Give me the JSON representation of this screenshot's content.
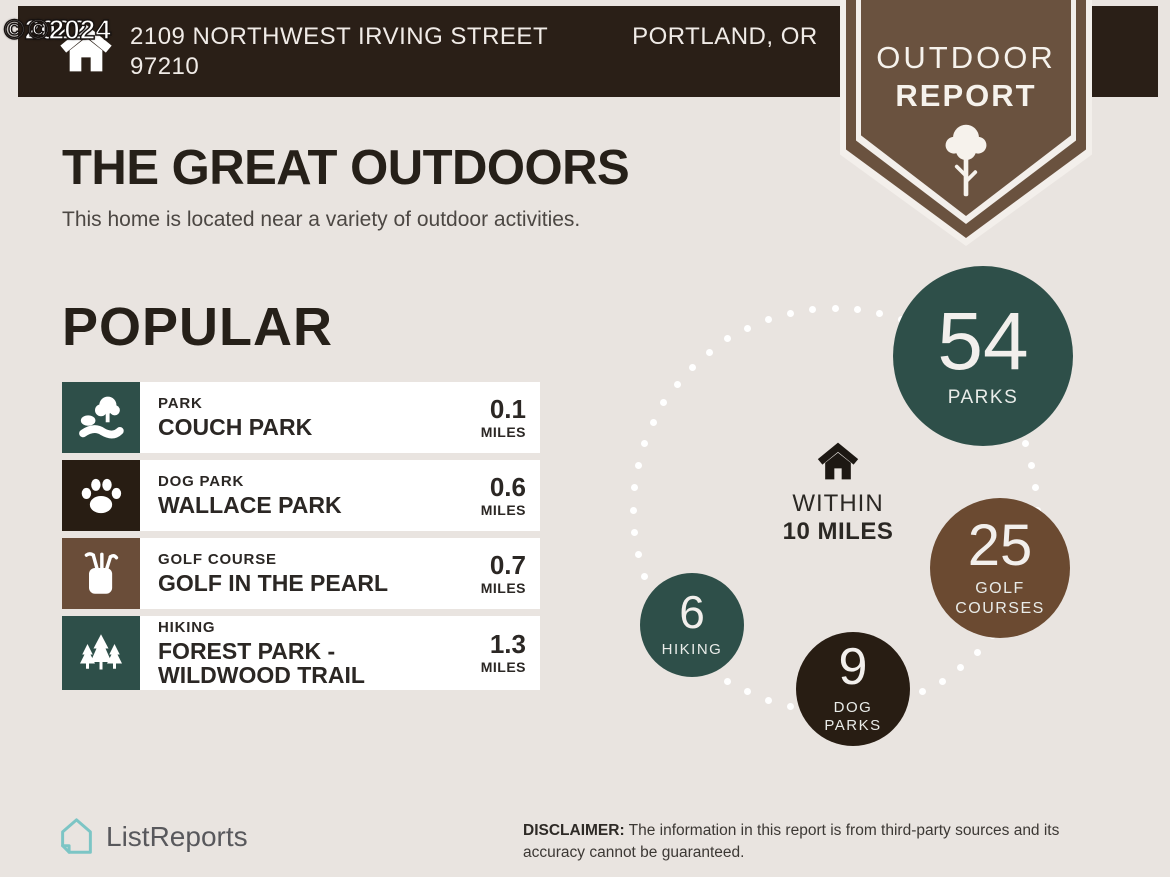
{
  "watermark": {
    "text_a": "©2022",
    "text_b": "©2024"
  },
  "header": {
    "address_line1": "2109 NORTHWEST IRVING STREET",
    "address_city": "PORTLAND, OR",
    "address_zip": "97210"
  },
  "badge": {
    "title_line1": "OUTDOOR",
    "title_line2": "REPORT"
  },
  "intro": {
    "title": "THE GREAT OUTDOORS",
    "subtitle": "This home is located near a variety of outdoor activities."
  },
  "popular": {
    "heading": "POPULAR",
    "items": [
      {
        "category": "PARK",
        "name": "COUCH PARK",
        "distance": "0.1",
        "unit": "MILES"
      },
      {
        "category": "DOG PARK",
        "name": "WALLACE PARK",
        "distance": "0.6",
        "unit": "MILES"
      },
      {
        "category": "GOLF COURSE",
        "name": "GOLF IN THE PEARL",
        "distance": "0.7",
        "unit": "MILES"
      },
      {
        "category": "HIKING",
        "name": "FOREST PARK - WILDWOOD TRAIL",
        "distance": "1.3",
        "unit": "MILES"
      }
    ]
  },
  "radius_chart": {
    "within_line1": "WITHIN",
    "within_line2": "10 MILES",
    "bubbles": [
      {
        "value": "54",
        "label_line1": "PARKS",
        "label_line2": ""
      },
      {
        "value": "25",
        "label_line1": "GOLF",
        "label_line2": "COURSES"
      },
      {
        "value": "9",
        "label_line1": "DOG",
        "label_line2": "PARKS"
      },
      {
        "value": "6",
        "label_line1": "HIKING",
        "label_line2": ""
      }
    ]
  },
  "footer": {
    "brand": "ListReports",
    "disclaimer_label": "DISCLAIMER:",
    "disclaimer_text": "The information in this report is from third-party sources and its accuracy cannot be guaranteed."
  },
  "colors": {
    "background": "#e9e4e0",
    "topbar": "#2a1f17",
    "badge_brown": "#6a523f",
    "teal": "#2e4f49",
    "golf_brown": "#6b4a31",
    "dark_brown": "#281d13",
    "logo_teal": "#7cc5c5"
  },
  "chart_data": {
    "type": "bubble",
    "title": "WITHIN 10 MILES",
    "categories": [
      "PARKS",
      "GOLF COURSES",
      "DOG PARKS",
      "HIKING"
    ],
    "values": [
      54,
      25,
      9,
      6
    ],
    "colors": [
      "#2e4f49",
      "#6b4a31",
      "#281d13",
      "#2e4f49"
    ]
  }
}
